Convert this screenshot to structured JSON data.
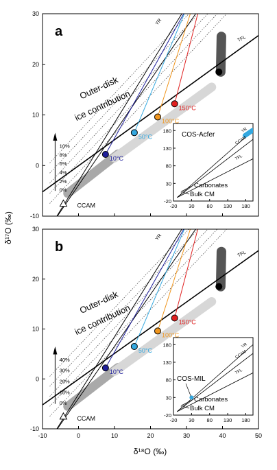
{
  "figure": {
    "ylabel": "δ¹⁷O (‰)",
    "xlabel": "δ¹⁸O (‰)"
  },
  "chart_data": [
    {
      "type": "line",
      "panel_label": "a",
      "xlim": [
        -10,
        50
      ],
      "ylim": [
        -10,
        30
      ],
      "x_ticks": [
        -10,
        0,
        10,
        20,
        30,
        40,
        50
      ],
      "y_ticks": [
        -10,
        0,
        10,
        20,
        30
      ],
      "x_ticks_shown": false,
      "grid": false,
      "line_labels": {
        "yr": "YR",
        "tfl": "TFL",
        "ccam": "CCAM"
      },
      "annotation_lines": [
        "Outer-disk",
        "ice contribution"
      ],
      "fraction_labels": [
        "10%",
        "8%",
        "6%",
        "4%",
        "2%",
        "0%"
      ],
      "temperature_points": [
        {
          "label": "10°C",
          "x": 7.5,
          "y": 2.2,
          "color": "#1e1e9a"
        },
        {
          "label": "50°C",
          "x": 15.5,
          "y": 6.5,
          "color": "#33a8e0"
        },
        {
          "label": "100°C",
          "x": 22,
          "y": 9.6,
          "color": "#f0961e"
        },
        {
          "label": "150°C",
          "x": 26.7,
          "y": 12.2,
          "color": "#e02020"
        }
      ],
      "ccam_point": {
        "label": "CCAM",
        "x": -4.2,
        "y": -7.5
      },
      "end_point": {
        "x": 39,
        "y": 18.5
      },
      "inset": {
        "xlim": [
          -20,
          200
        ],
        "ylim": [
          -20,
          200
        ],
        "x_ticks": [
          -20,
          30,
          80,
          130,
          180
        ],
        "y_ticks": [
          -20,
          30,
          80,
          130,
          180
        ],
        "line_labels": {
          "yr": "YR",
          "ccam": "CCAM",
          "tfl": "TFL"
        },
        "labels": {
          "cos": "COS-Acfer",
          "carbonates": "Carbonates",
          "bulk": "Bulk CM"
        },
        "cos_point": {
          "x": 180,
          "y": 170
        }
      }
    },
    {
      "type": "line",
      "panel_label": "b",
      "xlim": [
        -10,
        50
      ],
      "ylim": [
        -10,
        30
      ],
      "x_ticks": [
        -10,
        0,
        10,
        20,
        30,
        40,
        50
      ],
      "y_ticks": [
        -10,
        0,
        10,
        20,
        30
      ],
      "x_ticks_shown": true,
      "grid": false,
      "line_labels": {
        "yr": "YR",
        "tfl": "TFL",
        "ccam": "CCAM"
      },
      "annotation_lines": [
        "Outer-disk",
        "ice contribution"
      ],
      "fraction_labels": [
        "40%",
        "30%",
        "20%",
        "10%",
        "0%"
      ],
      "temperature_points": [
        {
          "label": "10°C",
          "x": 7.5,
          "y": 2.2,
          "color": "#1e1e9a"
        },
        {
          "label": "50°C",
          "x": 15.5,
          "y": 6.5,
          "color": "#33a8e0"
        },
        {
          "label": "100°C",
          "x": 22,
          "y": 9.6,
          "color": "#f0961e"
        },
        {
          "label": "150°C",
          "x": 26.7,
          "y": 12.2,
          "color": "#e02020"
        }
      ],
      "ccam_point": {
        "label": "CCAM",
        "x": -4.2,
        "y": -7.5
      },
      "end_point": {
        "x": 39,
        "y": 18.5
      },
      "inset": {
        "xlim": [
          -20,
          200
        ],
        "ylim": [
          -20,
          200
        ],
        "x_ticks": [
          -20,
          30,
          80,
          130,
          180
        ],
        "y_ticks": [
          -20,
          30,
          80,
          130,
          180
        ],
        "line_labels": {
          "yr": "YR",
          "ccam": "CCAM",
          "tfl": "TFL"
        },
        "labels": {
          "cos": "COS-MIL",
          "carbonates": "Carbonates",
          "bulk": "Bulk CM"
        },
        "cos_point": {
          "x": 30,
          "y": 30
        }
      }
    }
  ]
}
